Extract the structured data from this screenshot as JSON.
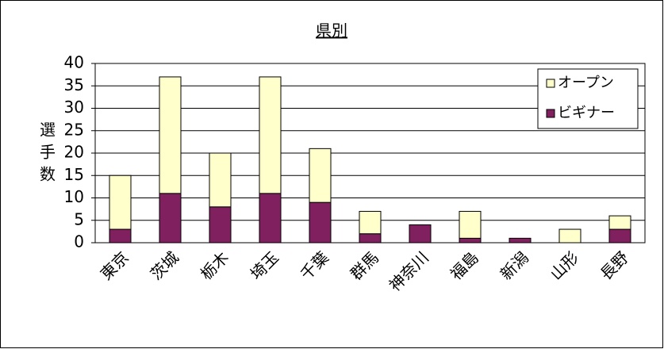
{
  "chart_data": {
    "type": "bar",
    "stacked": true,
    "title": "県別",
    "ylabel": "選手数",
    "categories": [
      "東京",
      "茨城",
      "栃木",
      "埼玉",
      "千葉",
      "群馬",
      "神奈川",
      "福島",
      "新潟",
      "山形",
      "長野"
    ],
    "series": [
      {
        "name": "ビギナー",
        "color": "#80205f",
        "values": [
          3,
          11,
          8,
          11,
          9,
          2,
          4,
          1,
          1,
          0,
          3
        ]
      },
      {
        "name": "オープン",
        "color": "#ffffcc",
        "values": [
          12,
          26,
          12,
          26,
          12,
          5,
          0,
          6,
          0,
          3,
          3
        ]
      }
    ],
    "ylim": [
      0,
      40
    ],
    "yticks": [
      0,
      5,
      10,
      15,
      20,
      25,
      30,
      35,
      40
    ],
    "grid": true,
    "legend": "top-right"
  }
}
